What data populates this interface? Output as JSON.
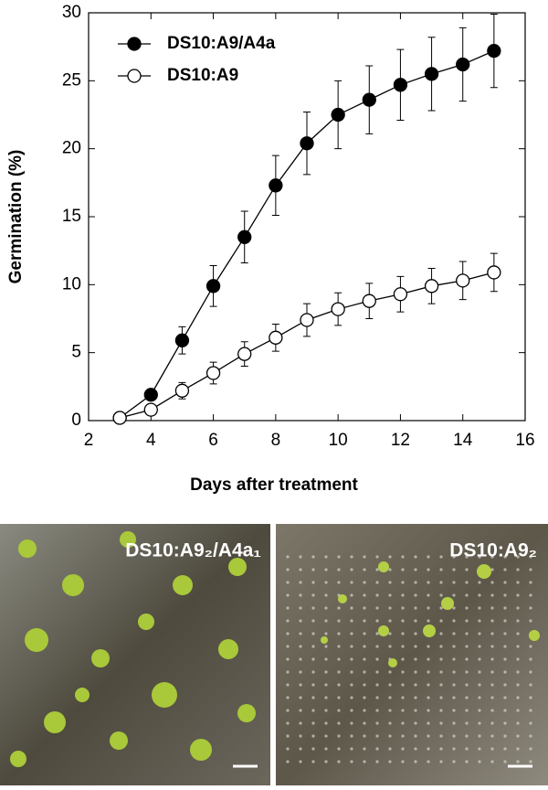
{
  "chart_data": {
    "type": "line",
    "xlabel": "Days after treatment",
    "ylabel": "Germination (%)",
    "x": [
      3,
      4,
      5,
      6,
      7,
      8,
      9,
      10,
      11,
      12,
      13,
      14,
      15
    ],
    "series": [
      {
        "name": "DS10:A9/A4a",
        "color": "#000000",
        "marker": "filled",
        "values": [
          0.2,
          1.9,
          5.9,
          9.9,
          13.5,
          17.3,
          20.4,
          22.5,
          23.6,
          24.7,
          25.5,
          26.2,
          27.2
        ],
        "errors": [
          0.1,
          0.3,
          1.0,
          1.5,
          1.9,
          2.2,
          2.3,
          2.5,
          2.5,
          2.6,
          2.7,
          2.7,
          2.7
        ]
      },
      {
        "name": "DS10:A9",
        "color": "#000000",
        "marker": "open",
        "values": [
          0.2,
          0.8,
          2.2,
          3.5,
          4.9,
          6.1,
          7.4,
          8.2,
          8.8,
          9.3,
          9.9,
          10.3,
          10.9
        ],
        "errors": [
          0.1,
          0.3,
          0.6,
          0.8,
          0.9,
          1.0,
          1.2,
          1.2,
          1.3,
          1.3,
          1.3,
          1.4,
          1.4
        ]
      }
    ],
    "xlim": [
      2,
      16
    ],
    "xticks": [
      2,
      4,
      6,
      8,
      10,
      12,
      14,
      16
    ],
    "ylim": [
      0,
      30
    ],
    "yticks": [
      0,
      5,
      10,
      15,
      20,
      25,
      30
    ],
    "legend": "upper left"
  },
  "photos": [
    {
      "label": "DS10:A9₂/A4a₁"
    },
    {
      "label": "DS10:A9₂"
    }
  ]
}
